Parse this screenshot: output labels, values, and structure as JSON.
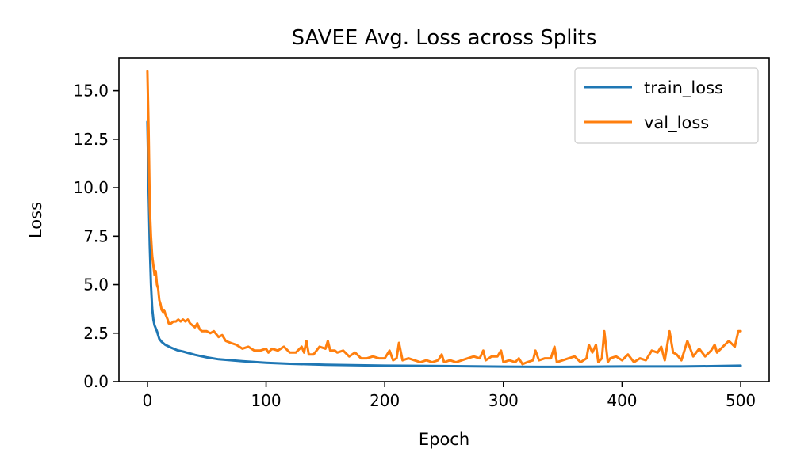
{
  "chart_data": {
    "type": "line",
    "title": "SAVEE Avg. Loss across Splits",
    "xlabel": "Epoch",
    "ylabel": "Loss",
    "xlim": [
      -24,
      524
    ],
    "ylim": [
      0,
      16.7
    ],
    "xticks": [
      0,
      100,
      200,
      300,
      400,
      500
    ],
    "xtick_labels": [
      "0",
      "100",
      "200",
      "300",
      "400",
      "500"
    ],
    "yticks": [
      0.0,
      2.5,
      5.0,
      7.5,
      10.0,
      12.5,
      15.0
    ],
    "ytick_labels": [
      "0.0",
      "2.5",
      "5.0",
      "7.5",
      "10.0",
      "12.5",
      "15.0"
    ],
    "grid": false,
    "legend_position": "top-right",
    "series": [
      {
        "name": "train_loss",
        "color": "#1f77b4",
        "x": [
          0,
          1,
          2,
          3,
          4,
          5,
          6,
          8,
          10,
          12,
          15,
          20,
          25,
          30,
          40,
          50,
          60,
          80,
          100,
          120,
          150,
          200,
          250,
          300,
          330,
          350,
          380,
          400,
          450,
          480,
          500
        ],
        "y": [
          13.4,
          10.0,
          7.0,
          5.0,
          3.8,
          3.2,
          2.9,
          2.6,
          2.2,
          2.05,
          1.9,
          1.75,
          1.62,
          1.55,
          1.38,
          1.25,
          1.15,
          1.05,
          0.97,
          0.92,
          0.87,
          0.82,
          0.8,
          0.77,
          0.76,
          0.76,
          0.77,
          0.78,
          0.78,
          0.8,
          0.82
        ]
      },
      {
        "name": "val_loss",
        "color": "#ff7f0e",
        "x": [
          0,
          1,
          2,
          3,
          4,
          5,
          6,
          7,
          8,
          9,
          10,
          11,
          12,
          13,
          14,
          15,
          17,
          18,
          20,
          22,
          24,
          26,
          28,
          30,
          32,
          34,
          36,
          38,
          40,
          42,
          44,
          46,
          48,
          50,
          53,
          56,
          60,
          63,
          66,
          70,
          75,
          80,
          85,
          90,
          95,
          100,
          102,
          105,
          110,
          115,
          120,
          125,
          130,
          132,
          134,
          136,
          140,
          145,
          150,
          152,
          154,
          158,
          160,
          165,
          170,
          175,
          180,
          185,
          190,
          195,
          200,
          204,
          207,
          210,
          212,
          215,
          220,
          225,
          230,
          235,
          240,
          245,
          248,
          250,
          255,
          260,
          265,
          270,
          275,
          280,
          283,
          285,
          290,
          295,
          298,
          300,
          305,
          310,
          313,
          316,
          320,
          325,
          327,
          330,
          335,
          340,
          343,
          345,
          350,
          355,
          360,
          365,
          370,
          372,
          375,
          378,
          380,
          383,
          385,
          388,
          390,
          395,
          400,
          405,
          410,
          415,
          420,
          425,
          430,
          433,
          436,
          440,
          443,
          446,
          450,
          455,
          460,
          465,
          470,
          475,
          478,
          480,
          485,
          490,
          495,
          498,
          500
        ],
        "y": [
          16.0,
          13.0,
          9.0,
          7.5,
          6.5,
          6.0,
          5.5,
          5.7,
          5.0,
          4.8,
          4.2,
          4.0,
          3.7,
          3.6,
          3.7,
          3.5,
          3.2,
          3.0,
          3.0,
          3.1,
          3.1,
          3.2,
          3.1,
          3.2,
          3.1,
          3.2,
          3.0,
          2.9,
          2.8,
          3.0,
          2.7,
          2.6,
          2.6,
          2.6,
          2.5,
          2.6,
          2.3,
          2.4,
          2.1,
          2.0,
          1.9,
          1.7,
          1.8,
          1.6,
          1.6,
          1.7,
          1.5,
          1.7,
          1.6,
          1.8,
          1.5,
          1.5,
          1.8,
          1.5,
          2.1,
          1.4,
          1.4,
          1.8,
          1.7,
          2.1,
          1.6,
          1.6,
          1.5,
          1.6,
          1.3,
          1.5,
          1.2,
          1.2,
          1.3,
          1.2,
          1.2,
          1.6,
          1.1,
          1.2,
          2.0,
          1.1,
          1.2,
          1.1,
          1.0,
          1.1,
          1.0,
          1.1,
          1.4,
          1.0,
          1.1,
          1.0,
          1.1,
          1.2,
          1.3,
          1.2,
          1.6,
          1.1,
          1.3,
          1.3,
          1.6,
          1.0,
          1.1,
          1.0,
          1.2,
          0.9,
          1.0,
          1.1,
          1.6,
          1.1,
          1.2,
          1.2,
          1.8,
          1.0,
          1.1,
          1.2,
          1.3,
          1.0,
          1.2,
          1.9,
          1.5,
          1.9,
          1.0,
          1.2,
          2.6,
          1.0,
          1.2,
          1.3,
          1.1,
          1.4,
          1.0,
          1.2,
          1.1,
          1.6,
          1.5,
          1.8,
          1.1,
          2.6,
          1.5,
          1.4,
          1.1,
          2.1,
          1.3,
          1.7,
          1.3,
          1.6,
          1.9,
          1.5,
          1.8,
          2.1,
          1.8,
          2.6,
          2.6
        ]
      }
    ]
  }
}
